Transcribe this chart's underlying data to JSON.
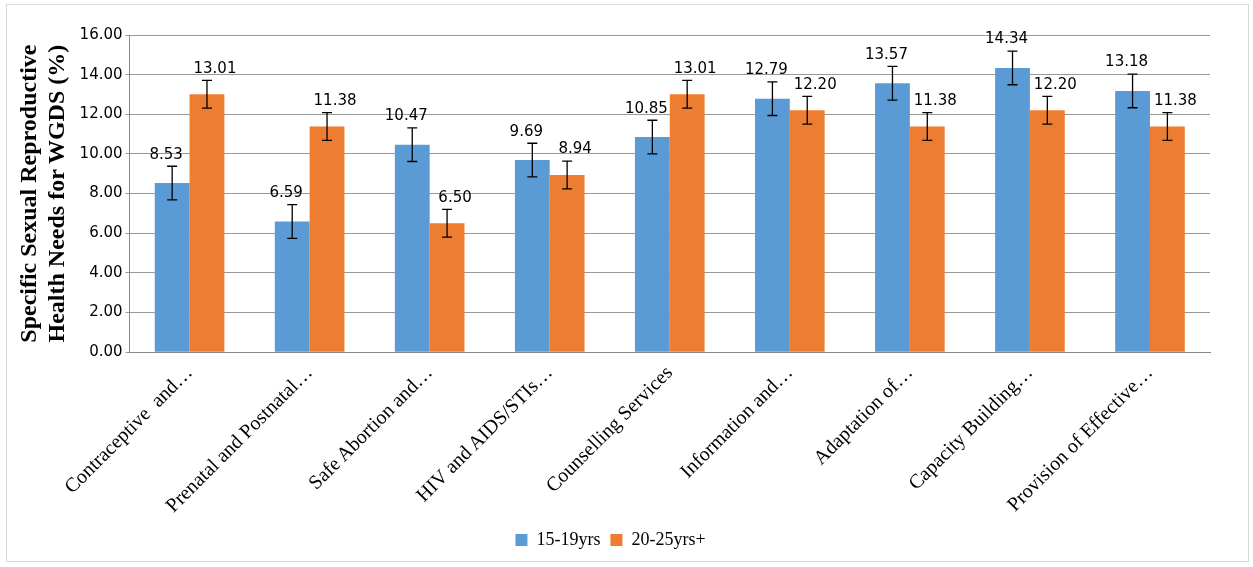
{
  "chart_data": {
    "type": "bar",
    "ylabel": "Specific Sexual Reproductive Health Needs for WGDS (%)",
    "categories": [
      "Contraceptive  and…",
      "Prenatal and Postnatal…",
      "Safe Abortion and…",
      "HIV and AIDS/STIs…",
      "Counselling Services",
      "Information and…",
      "Adaptation of…",
      "Capacity Building…",
      "Provision of Effective…"
    ],
    "series": [
      {
        "name": "15-19yrs",
        "color": "#5b9bd5",
        "values": [
          8.53,
          6.59,
          10.47,
          9.69,
          10.85,
          12.79,
          13.57,
          14.34,
          13.18
        ],
        "errors": [
          0.85,
          0.85,
          0.85,
          0.85,
          0.85,
          0.85,
          0.85,
          0.85,
          0.85
        ],
        "value_labels": [
          "8.53",
          "6.59",
          "10.47",
          "9.69",
          "10.85",
          "12.79",
          "13.57",
          "14.34",
          "13.18"
        ]
      },
      {
        "name": "20-25yrs+",
        "color": "#ed7d31",
        "values": [
          13.01,
          11.38,
          6.5,
          8.94,
          13.01,
          12.2,
          11.38,
          12.2,
          11.38
        ],
        "errors": [
          0.7,
          0.7,
          0.7,
          0.7,
          0.7,
          0.7,
          0.7,
          0.7,
          0.7
        ],
        "value_labels": [
          "13.01",
          "11.38",
          "6.50",
          "8.94",
          "13.01",
          "12.20",
          "11.38",
          "12.20",
          "11.38"
        ]
      }
    ],
    "ylim": [
      0,
      16
    ],
    "yticks": [
      {
        "value": 0,
        "label": "0.00"
      },
      {
        "value": 2,
        "label": "2.00"
      },
      {
        "value": 4,
        "label": "4.00"
      },
      {
        "value": 6,
        "label": "6.00"
      },
      {
        "value": 8,
        "label": "8.00"
      },
      {
        "value": 10,
        "label": "10.00"
      },
      {
        "value": 12,
        "label": "12.00"
      },
      {
        "value": 14,
        "label": "14.00"
      },
      {
        "value": 16,
        "label": "16.00"
      }
    ],
    "grid": "y",
    "legend": "bottom"
  }
}
